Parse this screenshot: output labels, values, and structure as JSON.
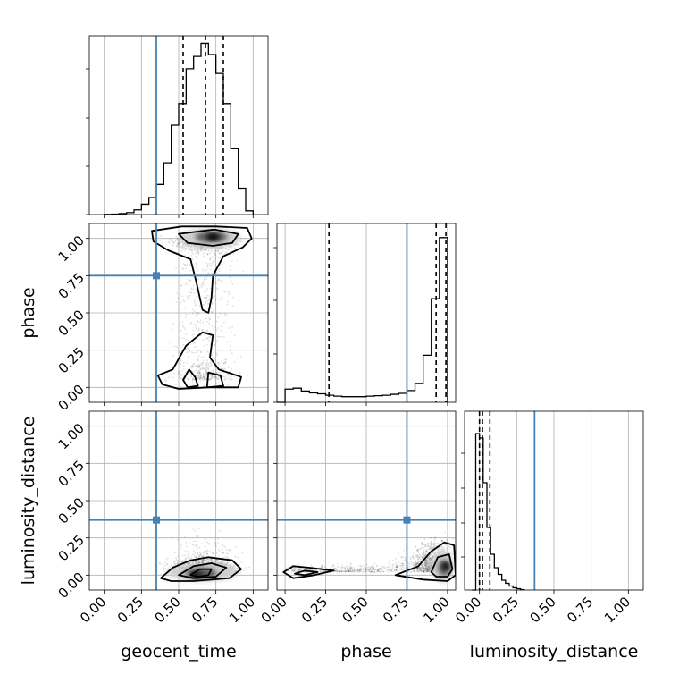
{
  "chart_data": {
    "type": "corner",
    "parameters": [
      "geocent_time",
      "phase",
      "luminosity_distance"
    ],
    "truths": [
      0.35,
      0.75,
      0.37
    ],
    "truth_color": "#4682b4",
    "tick_labels": [
      "0.00",
      "0.25",
      "0.50",
      "0.75",
      "1.00"
    ],
    "grid": true,
    "panels": [
      {
        "id": "hist-geocent_time",
        "kind": "histogram",
        "x": "geocent_time",
        "bin_edges": [
          0.0,
          0.05,
          0.1,
          0.15,
          0.2,
          0.25,
          0.3,
          0.35,
          0.4,
          0.45,
          0.5,
          0.55,
          0.6,
          0.65,
          0.7,
          0.75,
          0.8,
          0.85,
          0.9,
          0.95,
          1.0
        ],
        "counts": [
          0.2,
          0.4,
          1.0,
          2.0,
          5,
          11,
          18,
          32,
          55,
          95,
          118,
          155,
          168,
          182,
          170,
          150,
          118,
          70,
          28,
          4
        ],
        "quantiles": [
          0.53,
          0.68,
          0.8
        ]
      },
      {
        "id": "hist-phase",
        "kind": "histogram",
        "x": "phase",
        "bin_edges": [
          -0.05,
          0.0,
          0.05,
          0.1,
          0.15,
          0.2,
          0.25,
          0.3,
          0.35,
          0.4,
          0.45,
          0.5,
          0.55,
          0.6,
          0.65,
          0.7,
          0.75,
          0.8,
          0.85,
          0.9,
          0.95,
          1.0
        ],
        "counts": [
          0,
          28,
          30,
          24,
          20,
          18,
          15,
          13,
          12,
          12,
          12,
          13,
          14,
          15,
          17,
          19,
          25,
          40,
          100,
          220,
          350
        ],
        "quantiles": [
          0.27,
          0.93,
          0.99
        ]
      },
      {
        "id": "hist-luminosity_distance",
        "kind": "histogram",
        "x": "luminosity_distance",
        "bin_edges": [
          -0.05,
          -0.025,
          0.0,
          0.025,
          0.05,
          0.075,
          0.1,
          0.125,
          0.15,
          0.175,
          0.2,
          0.225,
          0.25,
          0.275,
          0.3
        ],
        "counts": [
          0,
          350,
          340,
          240,
          140,
          80,
          50,
          35,
          22,
          15,
          9,
          5,
          3,
          1
        ],
        "quantiles": [
          0.0,
          0.02,
          0.07
        ]
      },
      {
        "id": "contour-phase-geocent_time",
        "kind": "2d-density",
        "x": "geocent_time",
        "y": "phase",
        "density_peak": [
          0.72,
          1.02
        ],
        "secondary_mode": [
          0.72,
          0.04
        ]
      },
      {
        "id": "contour-luminosity_distance-geocent_time",
        "kind": "2d-density",
        "x": "geocent_time",
        "y": "luminosity_distance",
        "density_peak": [
          0.68,
          0.01
        ]
      },
      {
        "id": "contour-luminosity_distance-phase",
        "kind": "2d-density",
        "x": "phase",
        "y": "luminosity_distance",
        "density_peak": [
          0.99,
          0.05
        ]
      }
    ]
  }
}
